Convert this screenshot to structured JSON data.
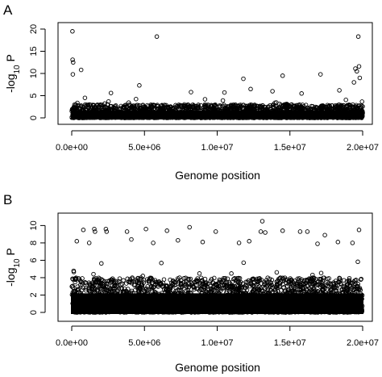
{
  "chart_data": [
    {
      "type": "scatter",
      "panel_label": "A",
      "xlabel": "Genome position",
      "ylabel_prefix": "-log",
      "ylabel_sub": "10",
      "ylabel_suffix": " P",
      "xlim": [
        0,
        20000000
      ],
      "ylim": [
        0,
        20
      ],
      "xticks": [
        0,
        5000000,
        10000000,
        15000000,
        20000000
      ],
      "xtick_labels": [
        "0.0e+00",
        "5.0e+06",
        "1.0e+07",
        "1.5e+07",
        "2.0e+07"
      ],
      "yticks": [
        0,
        5,
        10,
        15,
        20
      ],
      "ytick_labels": [
        "0",
        "5",
        "10",
        "15",
        "20"
      ],
      "baseline_max": 3,
      "notable_points": [
        {
          "x": 50000,
          "y": 19.5
        },
        {
          "x": 60000,
          "y": 13.1
        },
        {
          "x": 100000,
          "y": 12.5
        },
        {
          "x": 650000,
          "y": 10.8
        },
        {
          "x": 80000,
          "y": 9.8
        },
        {
          "x": 5850000,
          "y": 18.3
        },
        {
          "x": 19700000,
          "y": 18.3
        },
        {
          "x": 19750000,
          "y": 11.6
        },
        {
          "x": 19500000,
          "y": 11.1
        },
        {
          "x": 19600000,
          "y": 10.5
        },
        {
          "x": 19800000,
          "y": 9.0
        },
        {
          "x": 19400000,
          "y": 8.0
        },
        {
          "x": 11800000,
          "y": 8.8
        },
        {
          "x": 14500000,
          "y": 9.5
        },
        {
          "x": 17100000,
          "y": 9.8
        },
        {
          "x": 12300000,
          "y": 6.5
        },
        {
          "x": 4650000,
          "y": 7.3
        },
        {
          "x": 13800000,
          "y": 6.0
        },
        {
          "x": 18400000,
          "y": 6.2
        },
        {
          "x": 2700000,
          "y": 5.6
        },
        {
          "x": 8200000,
          "y": 5.8
        },
        {
          "x": 10500000,
          "y": 5.7
        },
        {
          "x": 15800000,
          "y": 5.5
        }
      ]
    },
    {
      "type": "scatter",
      "panel_label": "B",
      "xlabel": "Genome position",
      "ylabel_prefix": "-log",
      "ylabel_sub": "10",
      "ylabel_suffix": " P",
      "xlim": [
        0,
        20000000
      ],
      "ylim": [
        0,
        10.5
      ],
      "xticks": [
        0,
        5000000,
        10000000,
        15000000,
        20000000
      ],
      "xtick_labels": [
        "0.0e+00",
        "5.0e+06",
        "1.0e+07",
        "1.5e+07",
        "2.0e+07"
      ],
      "yticks": [
        0,
        2,
        4,
        6,
        8,
        10
      ],
      "ytick_labels": [
        "0",
        "2",
        "4",
        "6",
        "8",
        "10"
      ],
      "baseline_max": 4,
      "notable_points": [
        {
          "x": 800000,
          "y": 9.5
        },
        {
          "x": 1550000,
          "y": 9.6
        },
        {
          "x": 1600000,
          "y": 9.3
        },
        {
          "x": 2350000,
          "y": 9.6
        },
        {
          "x": 2400000,
          "y": 9.3
        },
        {
          "x": 3800000,
          "y": 9.3
        },
        {
          "x": 5100000,
          "y": 9.6
        },
        {
          "x": 6550000,
          "y": 9.4
        },
        {
          "x": 8100000,
          "y": 9.8
        },
        {
          "x": 9900000,
          "y": 9.3
        },
        {
          "x": 13100000,
          "y": 10.5
        },
        {
          "x": 13000000,
          "y": 9.3
        },
        {
          "x": 13300000,
          "y": 9.2
        },
        {
          "x": 14500000,
          "y": 9.4
        },
        {
          "x": 15700000,
          "y": 9.3
        },
        {
          "x": 16200000,
          "y": 9.3
        },
        {
          "x": 17400000,
          "y": 8.9
        },
        {
          "x": 19750000,
          "y": 9.5
        },
        {
          "x": 350000,
          "y": 8.2
        },
        {
          "x": 1200000,
          "y": 8.0
        },
        {
          "x": 4100000,
          "y": 8.4
        },
        {
          "x": 5600000,
          "y": 8.0
        },
        {
          "x": 7300000,
          "y": 8.3
        },
        {
          "x": 9000000,
          "y": 8.1
        },
        {
          "x": 11500000,
          "y": 8.0
        },
        {
          "x": 12200000,
          "y": 8.2
        },
        {
          "x": 16900000,
          "y": 7.9
        },
        {
          "x": 18300000,
          "y": 8.1
        },
        {
          "x": 19300000,
          "y": 8.0
        }
      ]
    }
  ]
}
